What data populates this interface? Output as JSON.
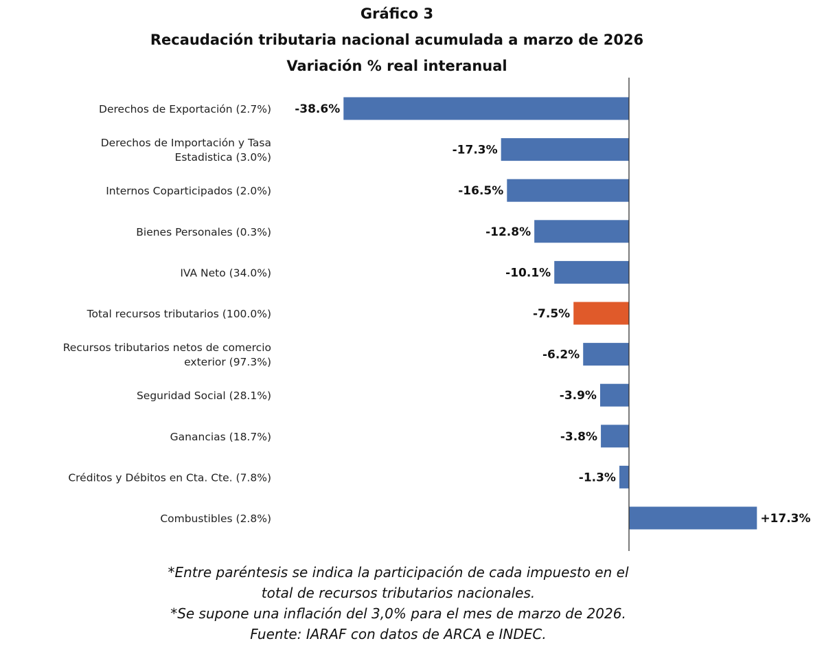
{
  "chart_data": {
    "type": "bar",
    "orientation": "horizontal",
    "title": "Gráfico 3",
    "subtitle": "Recaudación tributaria nacional acumulada a marzo de 2026",
    "subtitle2": "Variación % real interanual",
    "categories": [
      "Derechos de Exportación (2.7%)",
      "Derechos de Importación y Tasa|Estadistica (3.0%)",
      "Internos Coparticipados (2.0%)",
      "Bienes Personales (0.3%)",
      "IVA Neto (34.0%)",
      "Total recursos tributarios (100.0%)",
      "Recursos tributarios netos de comercio|exterior (97.3%)",
      "Seguridad Social (28.1%)",
      "Ganancias (18.7%)",
      "Créditos y Débitos en Cta. Cte. (7.8%)",
      "Combustibles (2.8%)"
    ],
    "values": [
      -38.6,
      -17.3,
      -16.5,
      -12.8,
      -10.1,
      -7.5,
      -6.2,
      -3.9,
      -3.8,
      -1.3,
      17.3
    ],
    "data_labels": [
      "-38.6%",
      "-17.3%",
      "-16.5%",
      "-12.8%",
      "-10.1%",
      "-7.5%",
      "-6.2%",
      "-3.9%",
      "-3.8%",
      "-1.3%",
      "+17.3%"
    ],
    "highlight_index": 5,
    "colors": {
      "bar": "#4a72b0",
      "highlight": "#e05a2a"
    },
    "xlim": [
      -38.6,
      17.3
    ],
    "grid": false,
    "legend": "none"
  },
  "notes": [
    "*Entre paréntesis se indica la participación de cada impuesto en el",
    "total de recursos tributarios nacionales.",
    "*Se supone una inflación del 3,0% para el mes de marzo de 2026.",
    "Fuente: IARAF con datos de ARCA e INDEC."
  ]
}
